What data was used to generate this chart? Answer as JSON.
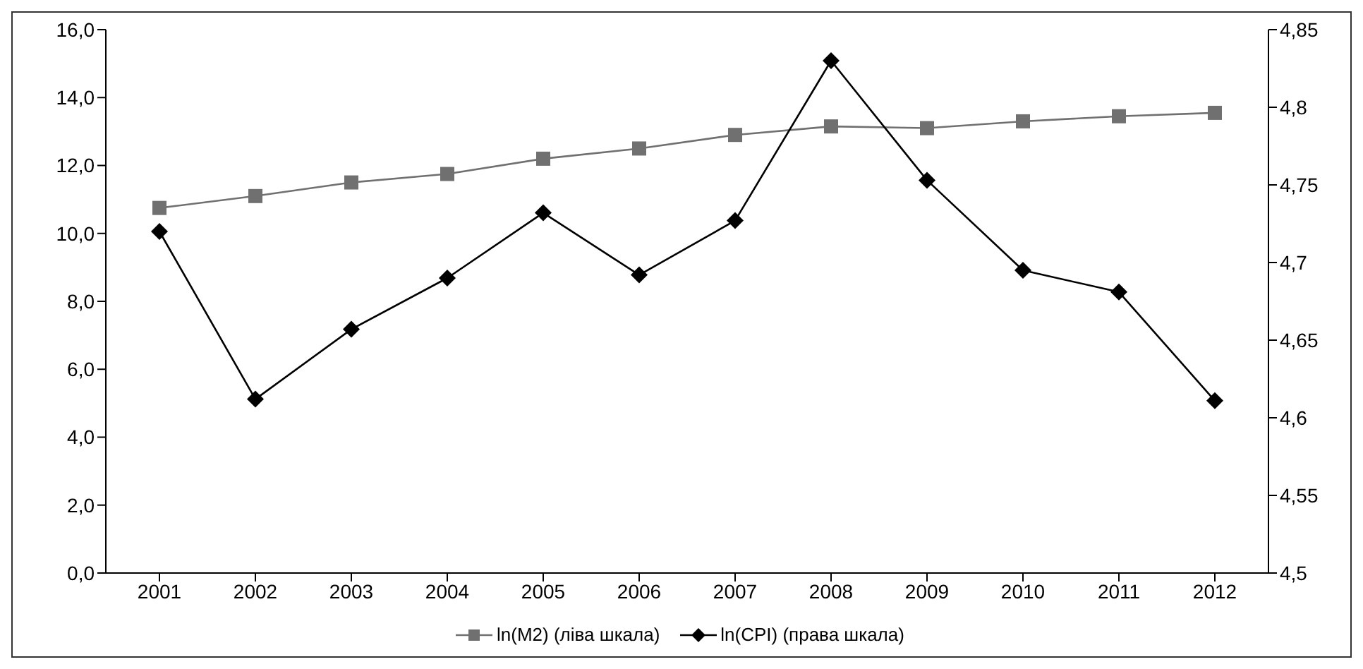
{
  "chart_data": {
    "type": "line",
    "categories": [
      "2001",
      "2002",
      "2003",
      "2004",
      "2005",
      "2006",
      "2007",
      "2008",
      "2009",
      "2010",
      "2011",
      "2012"
    ],
    "series": [
      {
        "name": "ln(M2) (ліва шкала)",
        "color": "#707070",
        "marker": "square",
        "values": [
          10.75,
          11.1,
          11.5,
          11.75,
          12.2,
          12.5,
          12.9,
          13.15,
          13.1,
          13.3,
          13.45,
          13.55
        ]
      },
      {
        "name": "ln(CPI) (права шкала)",
        "color": "#000000",
        "marker": "diamond",
        "axis": "y2",
        "values": [
          4.72,
          4.612,
          4.657,
          4.69,
          4.732,
          4.692,
          4.727,
          4.83,
          4.753,
          4.695,
          4.681,
          4.611
        ]
      }
    ],
    "ylim": [
      0,
      16
    ],
    "yticks": [
      {
        "value": 0,
        "label": "0,0"
      },
      {
        "value": 2,
        "label": "2,0"
      },
      {
        "value": 4,
        "label": "4,0"
      },
      {
        "value": 6,
        "label": "6,0"
      },
      {
        "value": 8,
        "label": "8,0"
      },
      {
        "value": 10,
        "label": "10,0"
      },
      {
        "value": 12,
        "label": "12,0"
      },
      {
        "value": 14,
        "label": "14,0"
      },
      {
        "value": 16,
        "label": "16,0"
      }
    ],
    "y2lim": [
      4.5,
      4.85
    ],
    "y2ticks": [
      {
        "value": 4.5,
        "label": "4,5"
      },
      {
        "value": 4.55,
        "label": "4,55"
      },
      {
        "value": 4.6,
        "label": "4,6"
      },
      {
        "value": 4.65,
        "label": "4,65"
      },
      {
        "value": 4.7,
        "label": "4,7"
      },
      {
        "value": 4.75,
        "label": "4,75"
      },
      {
        "value": 4.8,
        "label": "4,8"
      },
      {
        "value": 4.85,
        "label": "4,85"
      }
    ],
    "grid": false,
    "legend": "bottom"
  }
}
